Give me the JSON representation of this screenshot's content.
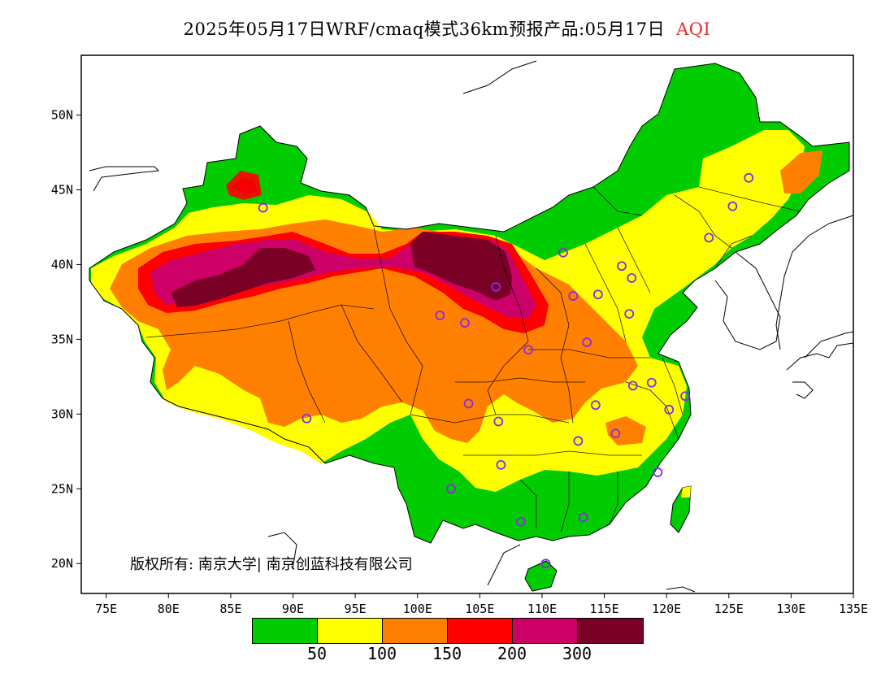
{
  "title": {
    "main": "2025年05月17日WRF/cmaq模式36km预报产品:05月17日",
    "pollutant": "AQI"
  },
  "axes": {
    "x_ticks": [
      "75E",
      "80E",
      "85E",
      "90E",
      "95E",
      "100E",
      "105E",
      "110E",
      "115E",
      "120E",
      "125E",
      "130E",
      "135E"
    ],
    "y_ticks": [
      "50N",
      "45N",
      "40N",
      "35N",
      "30N",
      "25N",
      "20N"
    ],
    "lon_range": [
      73,
      135
    ],
    "lat_range": [
      18,
      54
    ]
  },
  "legend": {
    "colors": [
      "#00cc00",
      "#ffff00",
      "#ff8000",
      "#ff0000",
      "#cc0066",
      "#7a0026"
    ],
    "labels": [
      "50",
      "100",
      "150",
      "200",
      "300"
    ]
  },
  "copyright": "版权所有: 南京大学| 南京创蓝科技有限公司",
  "colors": {
    "good": "#00cc00",
    "moderate": "#ffff00",
    "usg": "#ff8000",
    "unhealthy": "#ff0000",
    "very_unhealthy": "#cc0066",
    "hazardous": "#7a0026",
    "station_marker": "#8a2be2"
  },
  "stations": [
    {
      "lon": 87.6,
      "lat": 43.8
    },
    {
      "lon": 91.1,
      "lat": 29.7
    },
    {
      "lon": 101.8,
      "lat": 36.6
    },
    {
      "lon": 103.8,
      "lat": 36.1
    },
    {
      "lon": 106.3,
      "lat": 38.5
    },
    {
      "lon": 111.7,
      "lat": 40.8
    },
    {
      "lon": 112.5,
      "lat": 37.9
    },
    {
      "lon": 114.5,
      "lat": 38.0
    },
    {
      "lon": 116.4,
      "lat": 39.9
    },
    {
      "lon": 117.2,
      "lat": 39.1
    },
    {
      "lon": 117.0,
      "lat": 36.7
    },
    {
      "lon": 113.6,
      "lat": 34.8
    },
    {
      "lon": 108.9,
      "lat": 34.3
    },
    {
      "lon": 104.1,
      "lat": 30.7
    },
    {
      "lon": 106.5,
      "lat": 29.5
    },
    {
      "lon": 106.7,
      "lat": 26.6
    },
    {
      "lon": 102.7,
      "lat": 25.0
    },
    {
      "lon": 108.3,
      "lat": 22.8
    },
    {
      "lon": 113.3,
      "lat": 23.1
    },
    {
      "lon": 110.3,
      "lat": 20.0
    },
    {
      "lon": 119.3,
      "lat": 26.1
    },
    {
      "lon": 115.9,
      "lat": 28.7
    },
    {
      "lon": 112.9,
      "lat": 28.2
    },
    {
      "lon": 114.3,
      "lat": 30.6
    },
    {
      "lon": 117.3,
      "lat": 31.9
    },
    {
      "lon": 118.8,
      "lat": 32.1
    },
    {
      "lon": 120.2,
      "lat": 30.3
    },
    {
      "lon": 121.5,
      "lat": 31.2
    },
    {
      "lon": 123.4,
      "lat": 41.8
    },
    {
      "lon": 125.3,
      "lat": 43.9
    },
    {
      "lon": 126.6,
      "lat": 45.8
    }
  ]
}
